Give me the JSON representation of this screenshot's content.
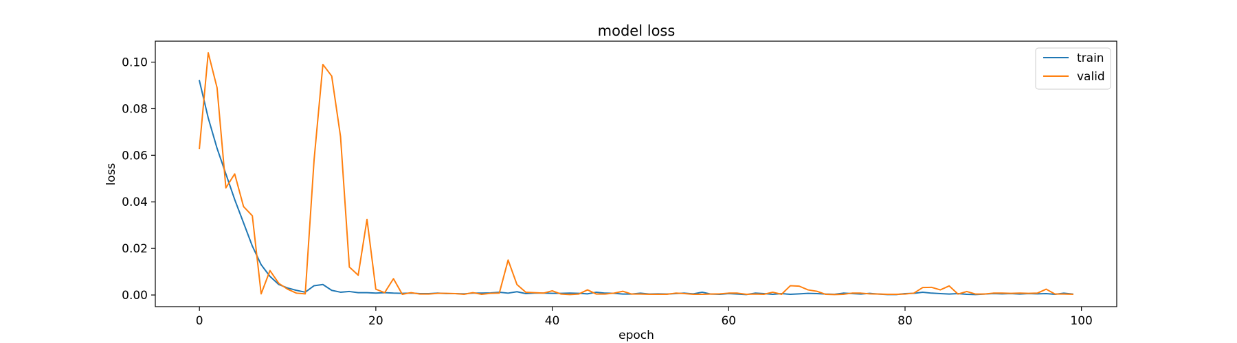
{
  "chart_data": {
    "type": "line",
    "title": "model loss",
    "xlabel": "epoch",
    "ylabel": "loss",
    "xlim": [
      -5,
      104
    ],
    "ylim": [
      -0.005,
      0.109
    ],
    "xticks": [
      0,
      20,
      40,
      60,
      80,
      100
    ],
    "xtick_labels": [
      "0",
      "20",
      "40",
      "60",
      "80",
      "100"
    ],
    "yticks": [
      0.0,
      0.02,
      0.04,
      0.06,
      0.08,
      0.1
    ],
    "ytick_labels": [
      "0.00",
      "0.02",
      "0.04",
      "0.06",
      "0.08",
      "0.10"
    ],
    "grid": false,
    "legend_position": "top-right",
    "x": [
      0,
      1,
      2,
      3,
      4,
      5,
      6,
      7,
      8,
      9,
      10,
      11,
      12,
      13,
      14,
      15,
      16,
      17,
      18,
      19,
      20,
      21,
      22,
      23,
      24,
      25,
      26,
      27,
      28,
      29,
      30,
      31,
      32,
      33,
      34,
      35,
      36,
      37,
      38,
      39,
      40,
      41,
      42,
      43,
      44,
      45,
      46,
      47,
      48,
      49,
      50,
      51,
      52,
      53,
      54,
      55,
      56,
      57,
      58,
      59,
      60,
      61,
      62,
      63,
      64,
      65,
      66,
      67,
      68,
      69,
      70,
      71,
      72,
      73,
      74,
      75,
      76,
      77,
      78,
      79,
      80,
      81,
      82,
      83,
      84,
      85,
      86,
      87,
      88,
      89,
      90,
      91,
      92,
      93,
      94,
      95,
      96,
      97,
      98,
      99
    ],
    "series": [
      {
        "name": "train",
        "color": "#1f77b4",
        "values": [
          0.092,
          0.076,
          0.063,
          0.052,
          0.041,
          0.031,
          0.021,
          0.013,
          0.008,
          0.0045,
          0.003,
          0.002,
          0.0012,
          0.004,
          0.0045,
          0.002,
          0.0012,
          0.0015,
          0.001,
          0.001,
          0.0008,
          0.001,
          0.0008,
          0.0007,
          0.0008,
          0.0006,
          0.0006,
          0.0008,
          0.0006,
          0.0006,
          0.0005,
          0.0008,
          0.0008,
          0.0009,
          0.0012,
          0.0008,
          0.0014,
          0.0006,
          0.0008,
          0.0008,
          0.0007,
          0.0007,
          0.0008,
          0.0007,
          0.0005,
          0.0012,
          0.0008,
          0.0007,
          0.0004,
          0.0004,
          0.0008,
          0.0004,
          0.0005,
          0.0004,
          0.0006,
          0.0008,
          0.0005,
          0.0012,
          0.0004,
          0.0003,
          0.0006,
          0.0004,
          0.0002,
          0.0008,
          0.0006,
          0.0003,
          0.0006,
          0.0003,
          0.0005,
          0.0007,
          0.0006,
          0.0004,
          0.0003,
          0.0008,
          0.0006,
          0.0004,
          0.0007,
          0.0004,
          0.0002,
          0.0002,
          0.0006,
          0.0007,
          0.0012,
          0.0008,
          0.0006,
          0.0004,
          0.0006,
          0.0003,
          0.0002,
          0.0004,
          0.0006,
          0.0005,
          0.0006,
          0.0004,
          0.0006,
          0.0005,
          0.0006,
          0.0003,
          0.0008,
          0.0004
        ]
      },
      {
        "name": "valid",
        "color": "#ff7f0e",
        "values": [
          0.063,
          0.104,
          0.089,
          0.046,
          0.052,
          0.038,
          0.034,
          0.0005,
          0.0105,
          0.005,
          0.0025,
          0.0008,
          0.0005,
          0.058,
          0.099,
          0.094,
          0.068,
          0.012,
          0.0085,
          0.0325,
          0.0025,
          0.001,
          0.007,
          0.0003,
          0.001,
          0.0004,
          0.0004,
          0.0007,
          0.0007,
          0.0006,
          0.0003,
          0.001,
          0.0003,
          0.0007,
          0.0008,
          0.015,
          0.0045,
          0.0012,
          0.001,
          0.0008,
          0.0018,
          0.0004,
          0.0002,
          0.0004,
          0.0022,
          0.0004,
          0.0004,
          0.0008,
          0.0016,
          0.0004,
          0.0004,
          0.0003,
          0.0003,
          0.0003,
          0.0008,
          0.0006,
          0.0003,
          0.0003,
          0.0004,
          0.0005,
          0.0008,
          0.0008,
          0.0003,
          0.0004,
          0.0003,
          0.0012,
          0.0003,
          0.004,
          0.0038,
          0.0022,
          0.0016,
          0.0003,
          0.0002,
          0.0003,
          0.0008,
          0.0008,
          0.0005,
          0.0004,
          0.0003,
          0.0003,
          0.0004,
          0.0008,
          0.0032,
          0.0033,
          0.0022,
          0.0039,
          0.0004,
          0.0015,
          0.0004,
          0.0004,
          0.0008,
          0.0008,
          0.0007,
          0.0008,
          0.0007,
          0.0008,
          0.0025,
          0.0004,
          0.0004,
          0.0003
        ]
      }
    ]
  }
}
